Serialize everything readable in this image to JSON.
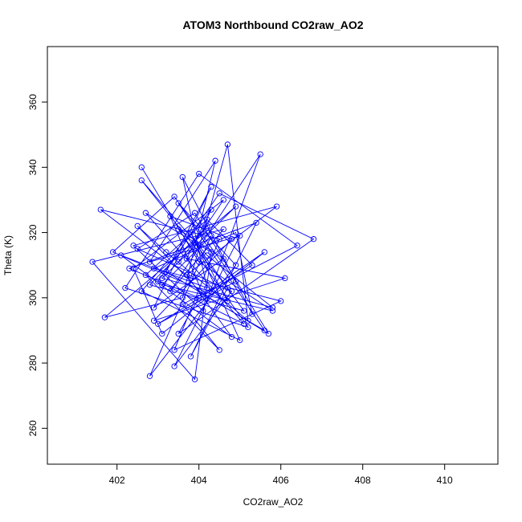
{
  "chart_data": {
    "type": "scatter",
    "title": "ATOM3 Northbound CO2raw_AO2",
    "xlabel": "CO2raw_AO2",
    "ylabel": "Theta (K)",
    "xlim": [
      400.3,
      411.3
    ],
    "ylim": [
      249,
      377
    ],
    "xticks": [
      "402",
      "404",
      "406",
      "408",
      "410"
    ],
    "yticks": [
      "260",
      "280",
      "300",
      "320",
      "340",
      "360"
    ],
    "grid": false,
    "legend": "none",
    "marker": "open-circle",
    "connected": true,
    "color": "#0000ff",
    "series": [
      {
        "x": [
          403.5,
          404.2,
          402.8,
          405.1,
          403.9,
          404.6,
          402.4,
          403.1,
          405.6,
          404.1,
          403.3,
          404.8,
          402.9,
          406.1,
          403.7,
          404.3,
          402.6,
          405.0,
          403.8,
          404.7,
          401.9,
          403.4,
          404.9,
          403.0,
          405.3,
          404.2,
          402.7,
          404.5,
          403.6,
          406.4,
          404.0,
          402.2,
          405.2,
          403.5,
          404.6,
          402.9,
          404.3,
          403.2,
          405.7,
          403.9,
          402.5,
          404.8,
          403.4,
          405.0,
          402.8,
          404.4,
          403.6,
          401.7,
          404.9,
          403.1,
          405.8,
          404.2,
          402.6,
          404.7,
          403.8,
          405.4,
          402.3,
          404.0,
          403.5,
          406.8,
          404.5,
          403.0,
          405.1,
          402.7,
          404.3,
          403.9,
          401.4,
          404.6,
          403.3,
          405.5,
          404.1,
          402.4,
          405.9,
          403.7,
          404.8,
          402.1,
          404.2,
          403.6,
          405.3,
          404.9,
          402.9,
          406.0,
          403.4,
          404.5,
          401.6,
          403.8,
          404.7,
          405.2,
          403.2,
          402.5,
          404.1,
          405.6,
          403.5,
          404.9,
          402.8,
          404.3,
          403.1,
          405.8,
          404.0,
          402.6
        ],
        "y": [
          311,
          322,
          304,
          296,
          317,
          330,
          309,
          289,
          314,
          301,
          325,
          318,
          293,
          306,
          312,
          327,
          302,
          287,
          320,
          299,
          314,
          331,
          305,
          292,
          310,
          324,
          307,
          284,
          298,
          316,
          338,
          303,
          291,
          321,
          312,
          297,
          334,
          308,
          289,
          326,
          315,
          302,
          279,
          319,
          311,
          342,
          300,
          294,
          328,
          306,
          297,
          313,
          336,
          303,
          282,
          323,
          309,
          300,
          289,
          318,
          332,
          305,
          292,
          326,
          314,
          275,
          311,
          321,
          302,
          344,
          296,
          316,
          328,
          307,
          288,
          313,
          303,
          337,
          295,
          320,
          309,
          299,
          284,
          318,
          327,
          306,
          347,
          293,
          314,
          322,
          301,
          290,
          329,
          310,
          276,
          319,
          304,
          296,
          311,
          340
        ]
      }
    ]
  }
}
